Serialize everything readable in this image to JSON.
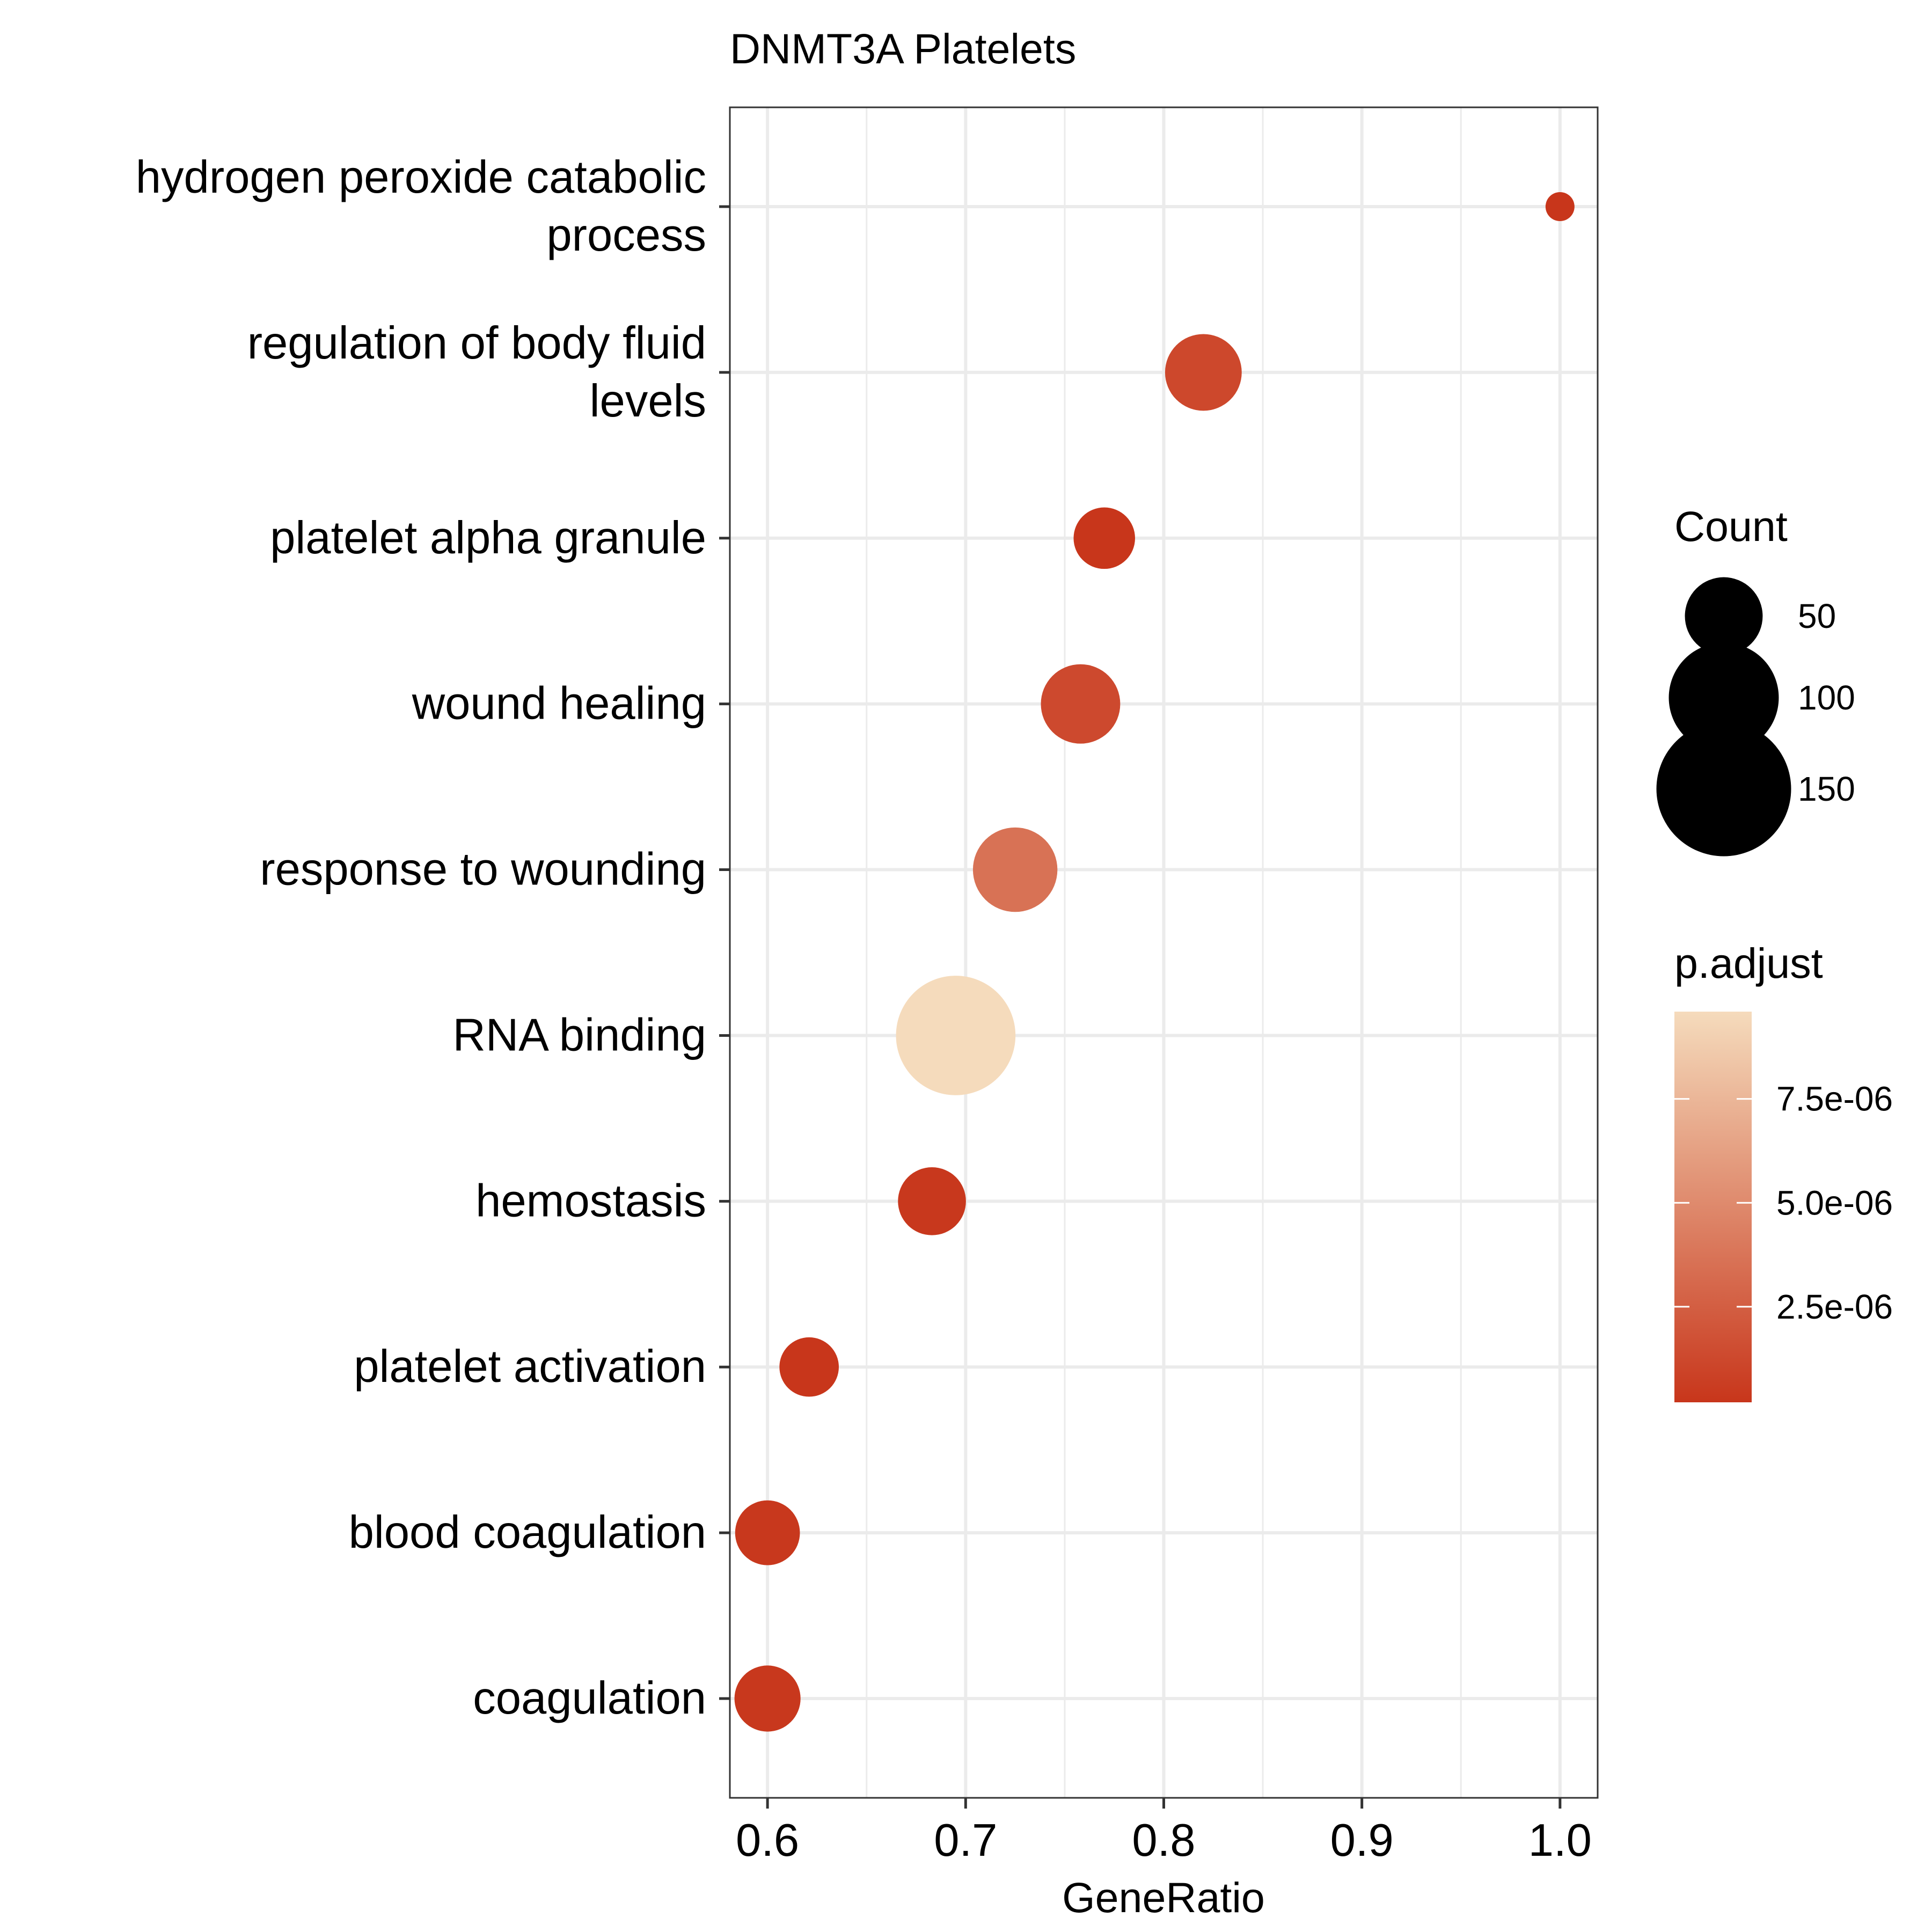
{
  "chart_data": {
    "type": "scatter",
    "title": "DNMT3A Platelets",
    "xlabel": "GeneRatio",
    "ylabel": "",
    "xlim": [
      0.581,
      1.019
    ],
    "x_ticks": [
      {
        "value": 0.6,
        "label": "0.6"
      },
      {
        "value": 0.7,
        "label": "0.7"
      },
      {
        "value": 0.8,
        "label": "0.8"
      },
      {
        "value": 0.9,
        "label": "0.9"
      },
      {
        "value": 1.0,
        "label": "1.0"
      }
    ],
    "x_minor_gridlines": [
      0.65,
      0.75,
      0.85,
      0.95
    ],
    "grid": true,
    "points": [
      {
        "term": [
          "hydrogen peroxide catabolic",
          "process"
        ],
        "gene_ratio": 1.0,
        "count": 10,
        "p_adjust": 2e-07
      },
      {
        "term": [
          "regulation of body fluid",
          "levels"
        ],
        "gene_ratio": 0.82,
        "count": 70,
        "p_adjust": 1.2e-06
      },
      {
        "term": [
          "platelet alpha granule"
        ],
        "gene_ratio": 0.77,
        "count": 45,
        "p_adjust": 2e-07
      },
      {
        "term": [
          "wound healing"
        ],
        "gene_ratio": 0.758,
        "count": 75,
        "p_adjust": 1.3e-06
      },
      {
        "term": [
          "response to wounding"
        ],
        "gene_ratio": 0.725,
        "count": 85,
        "p_adjust": 3.6e-06
      },
      {
        "term": [
          "RNA binding"
        ],
        "gene_ratio": 0.695,
        "count": 170,
        "p_adjust": 9.6e-06
      },
      {
        "term": [
          "hemostasis"
        ],
        "gene_ratio": 0.683,
        "count": 55,
        "p_adjust": 3e-07
      },
      {
        "term": [
          "platelet activation"
        ],
        "gene_ratio": 0.621,
        "count": 42,
        "p_adjust": 2e-07
      },
      {
        "term": [
          "blood coagulation"
        ],
        "gene_ratio": 0.6,
        "count": 50,
        "p_adjust": 3e-07
      },
      {
        "term": [
          "coagulation"
        ],
        "gene_ratio": 0.6,
        "count": 52,
        "p_adjust": 3e-07
      }
    ],
    "legend": {
      "placement": "right",
      "size": {
        "title": "Count",
        "entries": [
          {
            "value": 50,
            "label": "50"
          },
          {
            "value": 100,
            "label": "100"
          },
          {
            "value": 150,
            "label": "150"
          }
        ]
      },
      "color": {
        "title": "p.adjust",
        "range": [
          2e-07,
          9.6e-06
        ],
        "ticks": [
          {
            "value": 2.5e-06,
            "label": "2.5e-06"
          },
          {
            "value": 5e-06,
            "label": "5.0e-06"
          },
          {
            "value": 7.5e-06,
            "label": "7.5e-06"
          }
        ],
        "low_color": "#c8361b",
        "high_color": "#f5dbbc"
      }
    }
  }
}
